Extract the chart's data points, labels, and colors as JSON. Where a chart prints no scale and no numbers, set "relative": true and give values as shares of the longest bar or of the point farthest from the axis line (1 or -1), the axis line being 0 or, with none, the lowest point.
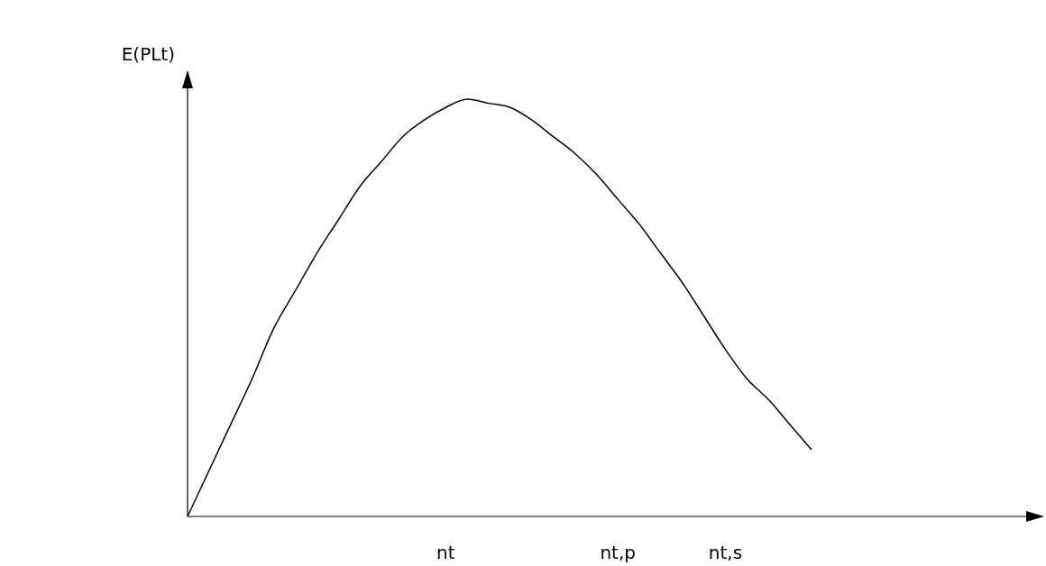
{
  "chart_data": {
    "type": "line",
    "relative": true,
    "ylabel": "E(PLt)",
    "color": "#000000",
    "marker": "none",
    "line_style": "solid",
    "categories": [
      null,
      null,
      null,
      null,
      null,
      null,
      null,
      null,
      null,
      null,
      null,
      null,
      "nt",
      null,
      null,
      null,
      null,
      null,
      null,
      null,
      "nt,p",
      null,
      null,
      null,
      null,
      "nt,s",
      null,
      null,
      null,
      null
    ],
    "values": [
      0,
      0.11,
      0.22,
      0.33,
      0.45,
      0.54,
      0.63,
      0.71,
      0.79,
      0.85,
      0.91,
      0.95,
      0.98,
      1.0,
      0.99,
      0.98,
      0.95,
      0.91,
      0.87,
      0.82,
      0.76,
      0.7,
      0.63,
      0.56,
      0.48,
      0.4,
      0.33,
      0.28,
      0.22,
      0.16
    ]
  }
}
